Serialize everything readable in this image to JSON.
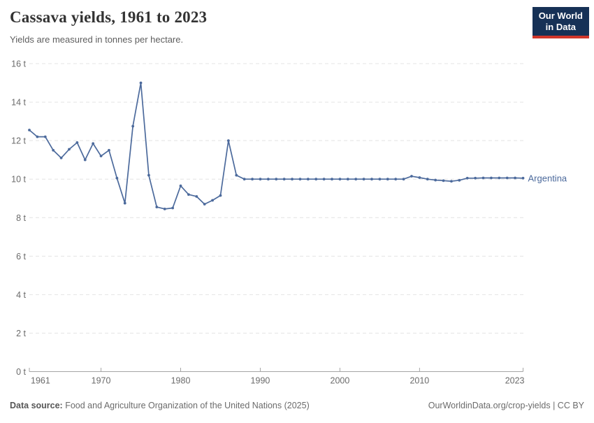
{
  "header": {
    "title": "Cassava yields, 1961 to 2023",
    "subtitle": "Yields are measured in tonnes per hectare.",
    "logo": {
      "line1": "Our World",
      "line2": "in Data",
      "bg_color": "#163156",
      "stripe_color": "#D0362A"
    }
  },
  "chart_data": {
    "type": "line",
    "title": "Cassava yields, 1961 to 2023",
    "ylabel": "tonnes per hectare",
    "xlabel": "",
    "grid": "horizontal-dashed",
    "legend_position": "end-of-line",
    "ylim": [
      0,
      16
    ],
    "yticks": [
      0,
      2,
      4,
      6,
      8,
      10,
      12,
      14,
      16
    ],
    "ytick_suffix": " t",
    "xticks": [
      1961,
      1970,
      1980,
      1990,
      2000,
      2010,
      2023
    ],
    "x": [
      1961,
      1962,
      1963,
      1964,
      1965,
      1966,
      1967,
      1968,
      1969,
      1970,
      1971,
      1972,
      1973,
      1974,
      1975,
      1976,
      1977,
      1978,
      1979,
      1980,
      1981,
      1982,
      1983,
      1984,
      1985,
      1986,
      1987,
      1988,
      1989,
      1990,
      1991,
      1992,
      1993,
      1994,
      1995,
      1996,
      1997,
      1998,
      1999,
      2000,
      2001,
      2002,
      2003,
      2004,
      2005,
      2006,
      2007,
      2008,
      2009,
      2010,
      2011,
      2012,
      2013,
      2014,
      2015,
      2016,
      2017,
      2018,
      2019,
      2020,
      2021,
      2022,
      2023
    ],
    "series": [
      {
        "name": "Argentina",
        "color": "#4C6A9C",
        "values": [
          12.55,
          12.2,
          12.2,
          11.5,
          11.1,
          11.55,
          11.9,
          11.0,
          11.85,
          11.2,
          11.5,
          10.05,
          8.75,
          12.75,
          15.0,
          10.2,
          8.55,
          8.45,
          8.5,
          9.65,
          9.2,
          9.1,
          8.7,
          8.9,
          9.15,
          12.0,
          10.2,
          10.0,
          10.0,
          10.0,
          10.0,
          10.0,
          10.0,
          10.0,
          10.0,
          10.0,
          10.0,
          10.0,
          10.0,
          10.0,
          10.0,
          10.0,
          10.0,
          10.0,
          10.0,
          10.0,
          10.0,
          10.0,
          10.15,
          10.08,
          10.0,
          9.95,
          9.92,
          9.89,
          9.94,
          10.05,
          10.05,
          10.06,
          10.06,
          10.06,
          10.06,
          10.06,
          10.05
        ]
      }
    ]
  },
  "footer": {
    "source_label": "Data source:",
    "source_text": "Food and Agriculture Organization of the United Nations (2025)",
    "url": "OurWorldinData.org/crop-yields",
    "separator": "|",
    "license": "CC BY"
  }
}
